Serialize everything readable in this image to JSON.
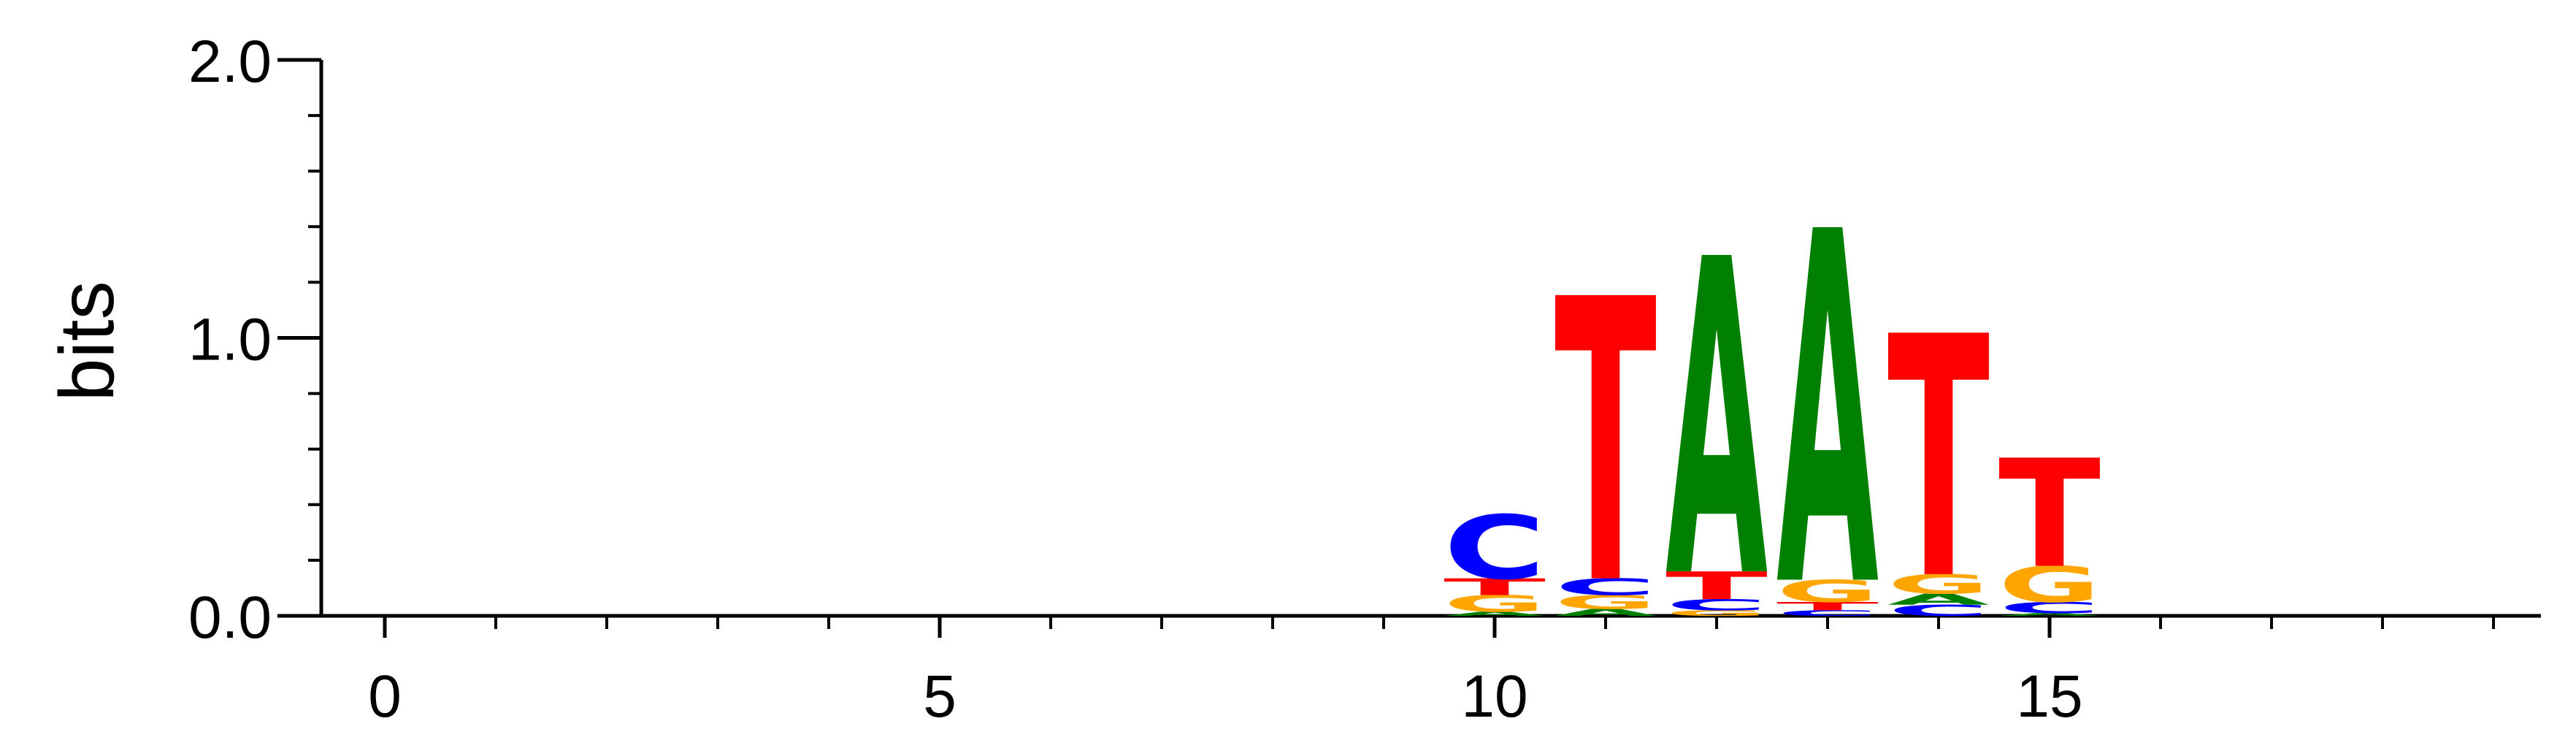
{
  "chart_data": {
    "type": "sequence-logo",
    "ylabel": "bits",
    "xlabel": "",
    "title": "",
    "ylim": [
      0,
      2
    ],
    "xlim": [
      -0.5,
      19.5
    ],
    "x_ticks": [
      0,
      5,
      10,
      15
    ],
    "x_minor_ticks": [
      0,
      1,
      2,
      3,
      4,
      5,
      6,
      7,
      8,
      9,
      10,
      11,
      12,
      13,
      14,
      15,
      16,
      17,
      18,
      19
    ],
    "y_ticks": [
      0.0,
      1.0,
      2.0
    ],
    "y_tick_labels": [
      "0.0",
      "1.0",
      "2.0"
    ],
    "y_minor_step": 0.2,
    "colors": {
      "A": "#008000",
      "C": "#0000ff",
      "G": "#ffa500",
      "T": "#ff0000"
    },
    "positions": [
      {
        "x": 10,
        "stack": [
          {
            "letter": "A",
            "height": 0.015
          },
          {
            "letter": "G",
            "height": 0.06
          },
          {
            "letter": "T",
            "height": 0.06
          },
          {
            "letter": "C",
            "height": 0.23
          }
        ]
      },
      {
        "x": 11,
        "stack": [
          {
            "letter": "A",
            "height": 0.025
          },
          {
            "letter": "G",
            "height": 0.05
          },
          {
            "letter": "C",
            "height": 0.06
          },
          {
            "letter": "T",
            "height": 1.02
          }
        ]
      },
      {
        "x": 12,
        "stack": [
          {
            "letter": "G",
            "height": 0.02
          },
          {
            "letter": "C",
            "height": 0.04
          },
          {
            "letter": "T",
            "height": 0.1
          },
          {
            "letter": "A",
            "height": 1.14
          }
        ]
      },
      {
        "x": 13,
        "stack": [
          {
            "letter": "C",
            "height": 0.02
          },
          {
            "letter": "T",
            "height": 0.03
          },
          {
            "letter": "G",
            "height": 0.08
          },
          {
            "letter": "A",
            "height": 1.27
          }
        ]
      },
      {
        "x": 14,
        "stack": [
          {
            "letter": "C",
            "height": 0.04
          },
          {
            "letter": "A",
            "height": 0.04
          },
          {
            "letter": "G",
            "height": 0.07
          },
          {
            "letter": "T",
            "height": 0.87
          }
        ]
      },
      {
        "x": 15,
        "stack": [
          {
            "letter": "A",
            "height": 0.01
          },
          {
            "letter": "C",
            "height": 0.04
          },
          {
            "letter": "G",
            "height": 0.13
          },
          {
            "letter": "T",
            "height": 0.39
          }
        ]
      }
    ]
  }
}
